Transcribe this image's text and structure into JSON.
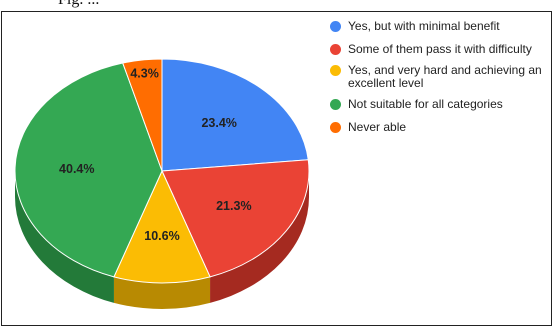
{
  "caption_fragment": "Fig. ...",
  "chart_data": {
    "type": "pie",
    "title": "",
    "legend_position": "right",
    "style": "3d",
    "start_angle": "12 o'clock, clockwise",
    "slices": [
      {
        "label": "Yes, but with minimal benefit",
        "value": 23.4,
        "value_label": "23.4%",
        "color": "#4285f4",
        "side_color": "#2a5db0"
      },
      {
        "label": "Some of them pass it with difficulty",
        "value": 21.3,
        "value_label": "21.3%",
        "color": "#ea4335",
        "side_color": "#a52a20"
      },
      {
        "label": "Yes, and very hard and achieving an excellent level",
        "value": 10.6,
        "value_label": "10.6%",
        "color": "#fbbc04",
        "side_color": "#b88a02"
      },
      {
        "label": "Not suitable for all categories",
        "value": 40.4,
        "value_label": "40.4%",
        "color": "#34a853",
        "side_color": "#237a39"
      },
      {
        "label": "Never able",
        "value": 4.3,
        "value_label": "4.3%",
        "color": "#ff6d01",
        "side_color": "#b84c00"
      }
    ]
  }
}
